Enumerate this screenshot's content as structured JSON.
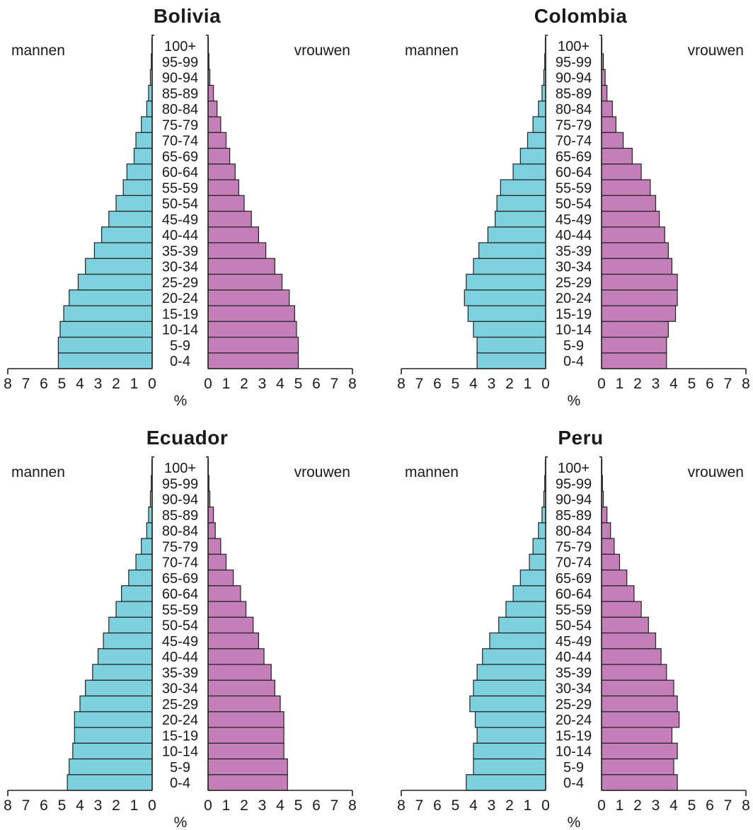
{
  "chart_data": [
    {
      "type": "bar",
      "title": "Bolivia",
      "left_label": "mannen",
      "right_label": "vrouwen",
      "unit": "%",
      "categories": [
        "0-4",
        "5-9",
        "10-14",
        "15-19",
        "20-24",
        "25-29",
        "30-34",
        "35-39",
        "40-44",
        "45-49",
        "50-54",
        "55-59",
        "60-64",
        "65-69",
        "70-74",
        "75-79",
        "80-84",
        "85-89",
        "90-94",
        "95-99",
        "100+"
      ],
      "series": [
        {
          "name": "mannen",
          "values": [
            5.2,
            5.2,
            5.1,
            4.9,
            4.6,
            4.1,
            3.7,
            3.2,
            2.8,
            2.4,
            2.0,
            1.6,
            1.4,
            1.0,
            0.9,
            0.6,
            0.3,
            0.2,
            0.1,
            0.05,
            0.02
          ]
        },
        {
          "name": "vrouwen",
          "values": [
            5.0,
            5.0,
            4.9,
            4.8,
            4.5,
            4.1,
            3.7,
            3.2,
            2.8,
            2.4,
            2.0,
            1.7,
            1.5,
            1.2,
            1.0,
            0.7,
            0.5,
            0.3,
            0.1,
            0.05,
            0.02
          ]
        }
      ],
      "ticks_left": [
        "8",
        "7",
        "6",
        "5",
        "4",
        "3",
        "2",
        "1",
        "0"
      ],
      "ticks_right": [
        "0",
        "1",
        "2",
        "3",
        "4",
        "5",
        "6",
        "7",
        "8"
      ],
      "xlim": [
        0,
        8
      ]
    },
    {
      "type": "bar",
      "title": "Colombia",
      "left_label": "mannen",
      "right_label": "vrouwen",
      "unit": "%",
      "categories": [
        "0-4",
        "5-9",
        "10-14",
        "15-19",
        "20-24",
        "25-29",
        "30-34",
        "35-39",
        "40-44",
        "45-49",
        "50-54",
        "55-59",
        "60-64",
        "65-69",
        "70-74",
        "75-79",
        "80-84",
        "85-89",
        "90-94",
        "95-99",
        "100+"
      ],
      "series": [
        {
          "name": "mannen",
          "values": [
            3.8,
            3.8,
            4.0,
            4.3,
            4.5,
            4.4,
            4.0,
            3.7,
            3.2,
            2.8,
            2.7,
            2.5,
            1.8,
            1.4,
            1.0,
            0.7,
            0.4,
            0.2,
            0.1,
            0.05,
            0.02
          ]
        },
        {
          "name": "vrouwen",
          "values": [
            3.6,
            3.6,
            3.7,
            4.1,
            4.2,
            4.2,
            3.9,
            3.7,
            3.5,
            3.2,
            3.0,
            2.7,
            2.2,
            1.7,
            1.2,
            0.8,
            0.6,
            0.3,
            0.2,
            0.1,
            0.02
          ]
        }
      ],
      "ticks_left": [
        "8",
        "7",
        "6",
        "5",
        "4",
        "3",
        "2",
        "1",
        "0"
      ],
      "ticks_right": [
        "0",
        "1",
        "2",
        "3",
        "4",
        "5",
        "6",
        "7",
        "8"
      ],
      "xlim": [
        0,
        8
      ]
    },
    {
      "type": "bar",
      "title": "Ecuador",
      "left_label": "mannen",
      "right_label": "vrouwen",
      "unit": "%",
      "categories": [
        "0-4",
        "5-9",
        "10-14",
        "15-19",
        "20-24",
        "25-29",
        "30-34",
        "35-39",
        "40-44",
        "45-49",
        "50-54",
        "55-59",
        "60-64",
        "65-69",
        "70-74",
        "75-79",
        "80-84",
        "85-89",
        "90-94",
        "95-99",
        "100+"
      ],
      "series": [
        {
          "name": "mannen",
          "values": [
            4.7,
            4.6,
            4.4,
            4.3,
            4.3,
            4.0,
            3.7,
            3.3,
            3.0,
            2.7,
            2.4,
            2.0,
            1.7,
            1.3,
            0.9,
            0.6,
            0.3,
            0.2,
            0.1,
            0.05,
            0.02
          ]
        },
        {
          "name": "vrouwen",
          "values": [
            4.4,
            4.4,
            4.2,
            4.2,
            4.2,
            4.0,
            3.7,
            3.5,
            3.1,
            2.8,
            2.5,
            2.1,
            1.8,
            1.4,
            1.0,
            0.7,
            0.4,
            0.3,
            0.1,
            0.05,
            0.02
          ]
        }
      ],
      "ticks_left": [
        "8",
        "7",
        "6",
        "5",
        "4",
        "3",
        "2",
        "1",
        "0"
      ],
      "ticks_right": [
        "0",
        "1",
        "2",
        "3",
        "4",
        "5",
        "6",
        "7",
        "8"
      ],
      "xlim": [
        0,
        8
      ]
    },
    {
      "type": "bar",
      "title": "Peru",
      "left_label": "mannen",
      "right_label": "vrouwen",
      "unit": "%",
      "categories": [
        "0-4",
        "5-9",
        "10-14",
        "15-19",
        "20-24",
        "25-29",
        "30-34",
        "35-39",
        "40-44",
        "45-49",
        "50-54",
        "55-59",
        "60-64",
        "65-69",
        "70-74",
        "75-79",
        "80-84",
        "85-89",
        "90-94",
        "95-99",
        "100+"
      ],
      "series": [
        {
          "name": "mannen",
          "values": [
            4.4,
            4.0,
            4.0,
            3.8,
            3.9,
            4.2,
            4.0,
            3.8,
            3.5,
            3.1,
            2.6,
            2.2,
            1.8,
            1.4,
            0.9,
            0.7,
            0.4,
            0.2,
            0.1,
            0.05,
            0.02
          ]
        },
        {
          "name": "vrouwen",
          "values": [
            4.2,
            4.0,
            4.2,
            3.9,
            4.3,
            4.2,
            4.0,
            3.6,
            3.3,
            3.0,
            2.6,
            2.2,
            1.8,
            1.4,
            1.0,
            0.7,
            0.5,
            0.3,
            0.1,
            0.05,
            0.02
          ]
        }
      ],
      "ticks_left": [
        "8",
        "7",
        "6",
        "5",
        "4",
        "3",
        "2",
        "1",
        "0"
      ],
      "ticks_right": [
        "0",
        "1",
        "2",
        "3",
        "4",
        "5",
        "6",
        "7",
        "8"
      ],
      "xlim": [
        0,
        8
      ]
    }
  ]
}
